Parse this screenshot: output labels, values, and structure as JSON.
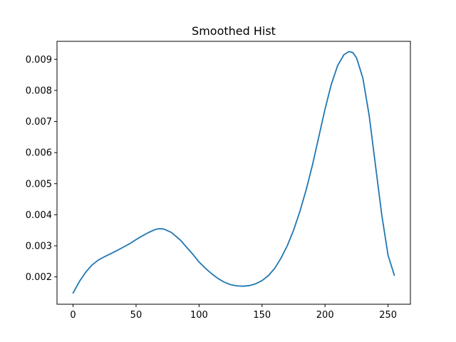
{
  "chart_data": {
    "type": "line",
    "title": "Smoothed Hist",
    "xlabel": "",
    "ylabel": "",
    "xlim": [
      -12.75,
      267.75
    ],
    "ylim": [
      0.00112,
      0.00958
    ],
    "x_ticks": [
      0,
      50,
      100,
      150,
      200,
      250
    ],
    "y_ticks": [
      0.002,
      0.003,
      0.004,
      0.005,
      0.006,
      0.007,
      0.008,
      0.009
    ],
    "y_tick_labels": [
      "0.002",
      "0.003",
      "0.004",
      "0.005",
      "0.006",
      "0.007",
      "0.008",
      "0.009"
    ],
    "grid": false,
    "legend": "none",
    "line_color": "#1f77b4",
    "series": [
      {
        "x": [
          0,
          5,
          10,
          15,
          20,
          25,
          30,
          35,
          40,
          45,
          50,
          55,
          60,
          65,
          68,
          72,
          78,
          85,
          90,
          95,
          100,
          105,
          110,
          115,
          120,
          125,
          130,
          135,
          140,
          145,
          150,
          155,
          160,
          165,
          170,
          175,
          180,
          185,
          190,
          195,
          200,
          205,
          210,
          215,
          219,
          222,
          225,
          230,
          235,
          240,
          245,
          250,
          255
        ],
        "y": [
          0.00148,
          0.00185,
          0.00215,
          0.00238,
          0.00254,
          0.00265,
          0.00275,
          0.00285,
          0.00296,
          0.00307,
          0.0032,
          0.00332,
          0.00343,
          0.00352,
          0.00355,
          0.00354,
          0.00343,
          0.00319,
          0.00296,
          0.00273,
          0.00248,
          0.00228,
          0.0021,
          0.00195,
          0.00183,
          0.00175,
          0.00171,
          0.0017,
          0.00172,
          0.00178,
          0.00188,
          0.00204,
          0.00227,
          0.0026,
          0.003,
          0.0035,
          0.0041,
          0.0048,
          0.0056,
          0.0065,
          0.0074,
          0.0082,
          0.0088,
          0.00915,
          0.00925,
          0.00922,
          0.00905,
          0.0084,
          0.0072,
          0.0056,
          0.004,
          0.0027,
          0.00205
        ]
      }
    ]
  }
}
